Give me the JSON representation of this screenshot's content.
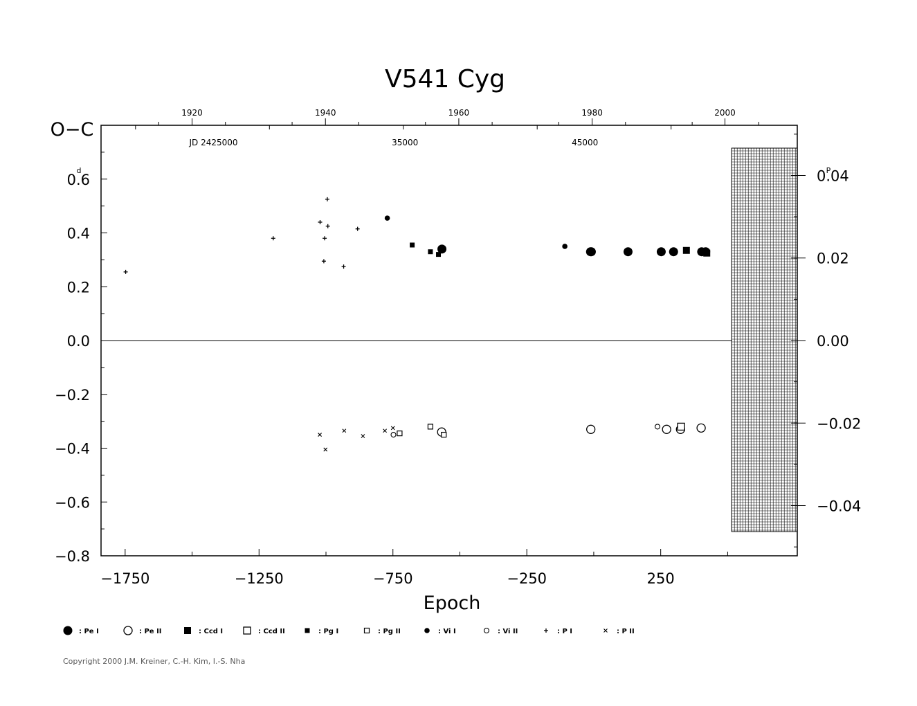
{
  "chart_data": {
    "type": "scatter",
    "title": "V541  Cyg",
    "ylabel": "O−C",
    "ylabel_unit": "d",
    "xlabel": "Epoch",
    "xlim": [
      -1840,
      760
    ],
    "ylim": [
      -0.8,
      0.8
    ],
    "y_ticks": [
      "0.6",
      "0.4",
      "0.2",
      "0.0",
      "−0.2",
      "−0.4",
      "−0.6",
      "−0.8"
    ],
    "y_tick_values": [
      0.6,
      0.4,
      0.2,
      0.0,
      -0.2,
      -0.4,
      -0.6,
      -0.8
    ],
    "x_ticks": [
      "−1750",
      "−1250",
      "−750",
      "−250",
      "250"
    ],
    "x_tick_values": [
      -1750,
      -1250,
      -750,
      -250,
      250
    ],
    "top_year_ticks": [
      "1920",
      "1940",
      "1960",
      "1980",
      "2000"
    ],
    "top_year_epochs": [
      -1500,
      -1002,
      -504,
      -6,
      490
    ],
    "jd_labels": [
      "JD  2425000",
      "35000",
      "45000"
    ],
    "jd_label_epochs": [
      -1420,
      -705,
      -33
    ],
    "right_axis_unit": "P",
    "right_ticks": [
      "0.04",
      "0.02",
      "0.00",
      "−0.02",
      "−0.04"
    ],
    "right_tick_values": [
      0.04,
      0.02,
      0.0,
      -0.02,
      -0.04
    ],
    "period_days": 15.34,
    "future_region_start_epoch": 515,
    "series": [
      {
        "name": ": Pe  I",
        "marker": "filled-circle-large",
        "points": [
          [
            -567,
            0.34
          ],
          [
            -12,
            0.33
          ],
          [
            -9,
            0.33
          ],
          [
            128,
            0.33
          ],
          [
            252,
            0.33
          ],
          [
            298,
            0.33
          ],
          [
            403,
            0.33
          ],
          [
            418,
            0.33
          ]
        ]
      },
      {
        "name": ": Pe  II",
        "marker": "open-circle-large",
        "points": [
          [
            -568,
            -0.34
          ],
          [
            -11,
            -0.33
          ],
          [
            272,
            -0.33
          ],
          [
            324,
            -0.33
          ],
          [
            401,
            -0.325
          ]
        ]
      },
      {
        "name": ": Ccd  I",
        "marker": "filled-square-large",
        "points": [
          [
            346,
            0.335
          ],
          [
            422,
            0.325
          ]
        ]
      },
      {
        "name": ": Ccd  II",
        "marker": "open-square-large",
        "points": [
          [
            326,
            -0.32
          ]
        ]
      },
      {
        "name": ": Pg  I",
        "marker": "filled-square-small",
        "points": [
          [
            -678,
            0.355
          ],
          [
            -610,
            0.33
          ],
          [
            -580,
            0.32
          ],
          [
            -570,
            0.335
          ]
        ]
      },
      {
        "name": ": Pg  II",
        "marker": "open-square-small",
        "points": [
          [
            -725,
            -0.345
          ],
          [
            -610,
            -0.32
          ],
          [
            -560,
            -0.35
          ]
        ]
      },
      {
        "name": ": Vi  I",
        "marker": "filled-circle-small",
        "points": [
          [
            -771,
            0.455
          ],
          [
            -108,
            0.35
          ]
        ]
      },
      {
        "name": ": Vi  II",
        "marker": "open-circle-small",
        "points": [
          [
            -748,
            -0.35
          ],
          [
            238,
            -0.32
          ]
        ]
      },
      {
        "name": ": P  I",
        "marker": "plus",
        "points": [
          [
            -1748,
            0.255
          ],
          [
            -1197,
            0.38
          ],
          [
            -1022,
            0.44
          ],
          [
            -1008,
            0.295
          ],
          [
            -1005,
            0.38
          ],
          [
            -995,
            0.525
          ],
          [
            -993,
            0.425
          ],
          [
            -934,
            0.275
          ],
          [
            -882,
            0.415
          ]
        ]
      },
      {
        "name": ": P  II",
        "marker": "cross",
        "points": [
          [
            -1023,
            -0.35
          ],
          [
            -1002,
            -0.405
          ],
          [
            -932,
            -0.335
          ],
          [
            -862,
            -0.355
          ],
          [
            -780,
            -0.335
          ],
          [
            -750,
            -0.325
          ]
        ]
      }
    ]
  },
  "legend": [
    {
      "marker": "filled-circle-large",
      "label": ": Pe  I"
    },
    {
      "marker": "open-circle-large",
      "label": ": Pe  II"
    },
    {
      "marker": "filled-square-large",
      "label": ": Ccd  I"
    },
    {
      "marker": "open-square-large",
      "label": ": Ccd  II"
    },
    {
      "marker": "filled-square-small",
      "label": ": Pg  I"
    },
    {
      "marker": "open-square-small",
      "label": ": Pg  II"
    },
    {
      "marker": "filled-circle-small",
      "label": ": Vi  I"
    },
    {
      "marker": "open-circle-small",
      "label": ": Vi  II"
    },
    {
      "marker": "plus",
      "label": ": P  I"
    },
    {
      "marker": "cross",
      "label": ": P  II"
    }
  ],
  "copyright": "Copyright 2000 J.M. Kreiner, C.-H. Kim, I.-S. Nha"
}
